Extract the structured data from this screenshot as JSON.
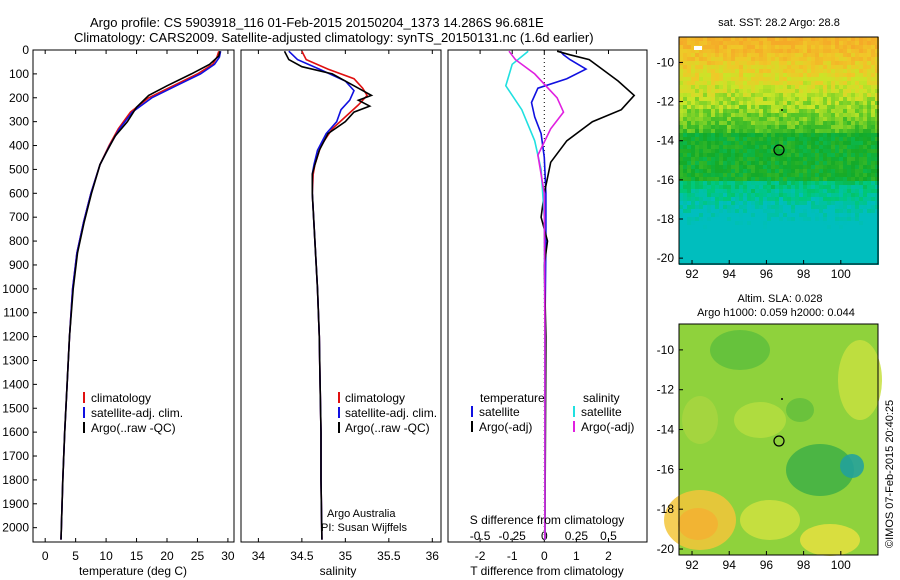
{
  "header": {
    "line1": "Argo profile: CS 5903918_116 01-Feb-2015 20150204_1373 14.286S 96.681E",
    "line2": "Climatology: CARS2009. Satellite-adjusted climatology: synTS_20150131.nc (1.6d earlier)"
  },
  "colors": {
    "climatology": "#e01010",
    "satellite": "#1010e0",
    "argo": "#000000",
    "sat_salinity": "#20e0e0",
    "argo_salinity": "#e020e0"
  },
  "chart_data": [
    {
      "type": "line",
      "name": "temperature-profile",
      "xlabel": "temperature (deg C)",
      "xlim": [
        -2,
        31
      ],
      "xticks": [
        0,
        5,
        10,
        15,
        20,
        25,
        30
      ],
      "ylim": [
        2060,
        0
      ],
      "yticks": [
        0,
        100,
        200,
        300,
        400,
        500,
        600,
        700,
        800,
        900,
        1000,
        1100,
        1200,
        1300,
        1400,
        1500,
        1600,
        1700,
        1800,
        1900,
        2000
      ],
      "legend": [
        "climatology",
        "satellite-adj. clim.",
        "Argo(..raw -QC)"
      ],
      "series": [
        {
          "name": "climatology",
          "color": "#e01010",
          "points": [
            [
              28.5,
              5
            ],
            [
              28.2,
              30
            ],
            [
              27.5,
              60
            ],
            [
              25,
              100
            ],
            [
              21,
              150
            ],
            [
              17,
              200
            ],
            [
              14,
              260
            ],
            [
              12,
              330
            ],
            [
              10.5,
              400
            ],
            [
              9,
              480
            ],
            [
              7.5,
              600
            ],
            [
              6.3,
              720
            ],
            [
              5.2,
              850
            ],
            [
              4.5,
              1000
            ],
            [
              4,
              1200
            ],
            [
              3.6,
              1400
            ],
            [
              3.2,
              1600
            ],
            [
              2.9,
              1800
            ],
            [
              2.6,
              2050
            ]
          ]
        },
        {
          "name": "satellite-adj. clim.",
          "color": "#1010e0",
          "points": [
            [
              28.8,
              5
            ],
            [
              28.6,
              30
            ],
            [
              27.8,
              60
            ],
            [
              25.5,
              100
            ],
            [
              21.5,
              150
            ],
            [
              17.5,
              200
            ],
            [
              14.3,
              260
            ],
            [
              12.2,
              330
            ],
            [
              10.6,
              400
            ],
            [
              9,
              480
            ],
            [
              7.5,
              600
            ],
            [
              6.3,
              720
            ],
            [
              5.2,
              850
            ],
            [
              4.5,
              1000
            ],
            [
              4,
              1200
            ],
            [
              3.6,
              1400
            ],
            [
              3.2,
              1600
            ],
            [
              2.9,
              1800
            ],
            [
              2.6,
              2050
            ]
          ]
        },
        {
          "name": "Argo(..raw -QC)",
          "color": "#000000",
          "points": [
            [
              28.7,
              5
            ],
            [
              28.5,
              25
            ],
            [
              27,
              60
            ],
            [
              24,
              100
            ],
            [
              20,
              150
            ],
            [
              17,
              190
            ],
            [
              15,
              240
            ],
            [
              13.5,
              300
            ],
            [
              11.5,
              360
            ],
            [
              10,
              430
            ],
            [
              9,
              480
            ],
            [
              7.6,
              600
            ],
            [
              6.4,
              720
            ],
            [
              5.3,
              850
            ],
            [
              4.6,
              1000
            ],
            [
              4,
              1200
            ],
            [
              3.6,
              1400
            ],
            [
              3.2,
              1600
            ],
            [
              2.9,
              1800
            ],
            [
              2.6,
              2050
            ]
          ]
        }
      ]
    },
    {
      "type": "line",
      "name": "salinity-profile",
      "xlabel": "salinity",
      "xlim": [
        33.8,
        36.1
      ],
      "xticks": [
        34,
        34.5,
        35,
        35.5,
        36
      ],
      "ylim": [
        2060,
        0
      ],
      "legend": [
        "climatology",
        "satellite-adj. clim.",
        "Argo(..raw -QC)"
      ],
      "annotation": [
        "Argo Australia",
        "PI: Susan Wijffels"
      ],
      "series": [
        {
          "name": "climatology",
          "color": "#e01010",
          "points": [
            [
              34.5,
              5
            ],
            [
              34.55,
              40
            ],
            [
              34.8,
              80
            ],
            [
              35.1,
              120
            ],
            [
              35.2,
              160
            ],
            [
              35.25,
              190
            ],
            [
              35.15,
              230
            ],
            [
              35.0,
              280
            ],
            [
              34.85,
              330
            ],
            [
              34.72,
              400
            ],
            [
              34.65,
              480
            ],
            [
              34.63,
              520
            ],
            [
              34.62,
              600
            ],
            [
              34.65,
              800
            ],
            [
              34.68,
              1000
            ],
            [
              34.7,
              1200
            ],
            [
              34.71,
              1400
            ],
            [
              34.72,
              1600
            ],
            [
              34.72,
              1800
            ],
            [
              34.73,
              2050
            ]
          ]
        },
        {
          "name": "satellite-adj. clim.",
          "color": "#1010e0",
          "points": [
            [
              34.35,
              5
            ],
            [
              34.45,
              40
            ],
            [
              34.7,
              80
            ],
            [
              35,
              130
            ],
            [
              35.1,
              170
            ],
            [
              35.05,
              210
            ],
            [
              34.95,
              250
            ],
            [
              34.9,
              300
            ],
            [
              34.78,
              350
            ],
            [
              34.68,
              420
            ],
            [
              34.64,
              480
            ],
            [
              34.62,
              520
            ],
            [
              34.62,
              600
            ],
            [
              34.65,
              800
            ],
            [
              34.68,
              1000
            ],
            [
              34.7,
              1200
            ],
            [
              34.71,
              1400
            ],
            [
              34.72,
              1600
            ],
            [
              34.72,
              1800
            ],
            [
              34.73,
              2050
            ]
          ]
        },
        {
          "name": "Argo(..raw -QC)",
          "color": "#000000",
          "points": [
            [
              34.3,
              5
            ],
            [
              34.35,
              40
            ],
            [
              34.5,
              70
            ],
            [
              34.85,
              100
            ],
            [
              35.05,
              140
            ],
            [
              35.2,
              170
            ],
            [
              35.3,
              190
            ],
            [
              35.15,
              210
            ],
            [
              35.28,
              235
            ],
            [
              35.1,
              260
            ],
            [
              35.0,
              300
            ],
            [
              34.8,
              350
            ],
            [
              34.7,
              420
            ],
            [
              34.65,
              480
            ],
            [
              34.62,
              520
            ],
            [
              34.62,
              600
            ],
            [
              34.65,
              800
            ],
            [
              34.68,
              1000
            ],
            [
              34.7,
              1200
            ],
            [
              34.71,
              1400
            ],
            [
              34.72,
              1600
            ],
            [
              34.72,
              1800
            ],
            [
              34.73,
              2050
            ]
          ]
        }
      ]
    },
    {
      "type": "line",
      "name": "difference-profile",
      "xlabel": "T difference from climatology",
      "xlabel2": "S difference from climatology",
      "xlim": [
        -3,
        3.2
      ],
      "xticks": [
        -2,
        -1,
        0,
        1,
        2
      ],
      "xticks_s": [
        "-0.5",
        "-0.25",
        "0",
        "0.25",
        "0.5"
      ],
      "ylim": [
        2060,
        0
      ],
      "legend_temperature": {
        "heading": "temperature",
        "items": [
          "satellite",
          "Argo(-adj)"
        ]
      },
      "legend_salinity": {
        "heading": "salinity",
        "items": [
          "satellite",
          "Argo(-adj)"
        ]
      },
      "series": [
        {
          "name": "temperature satellite",
          "color": "#1010e0",
          "points": [
            [
              0.5,
              5
            ],
            [
              0.6,
              20
            ],
            [
              0.8,
              40
            ],
            [
              1.3,
              80
            ],
            [
              0.7,
              120
            ],
            [
              -0.2,
              160
            ],
            [
              -0.4,
              220
            ],
            [
              -0.3,
              280
            ],
            [
              -0.1,
              350
            ],
            [
              0,
              450
            ],
            [
              0.05,
              600
            ],
            [
              0.05,
              800
            ],
            [
              0.02,
              1200
            ],
            [
              0.02,
              2050
            ]
          ]
        },
        {
          "name": "temperature Argo(-adj)",
          "color": "#000000",
          "points": [
            [
              0.4,
              5
            ],
            [
              0.8,
              20
            ],
            [
              1.4,
              40
            ],
            [
              1.8,
              80
            ],
            [
              2.3,
              130
            ],
            [
              2.8,
              190
            ],
            [
              2.4,
              250
            ],
            [
              1.5,
              300
            ],
            [
              0.7,
              380
            ],
            [
              0.2,
              470
            ],
            [
              0,
              600
            ],
            [
              -0.1,
              700
            ],
            [
              0.1,
              800
            ],
            [
              0,
              900
            ],
            [
              0.05,
              1200
            ],
            [
              0.02,
              2050
            ]
          ]
        },
        {
          "name": "salinity satellite",
          "color": "#20e0e0",
          "points": [
            [
              -0.5,
              5
            ],
            [
              -1,
              60
            ],
            [
              -1.2,
              150
            ],
            [
              -0.7,
              250
            ],
            [
              -0.3,
              380
            ],
            [
              -0.1,
              500
            ],
            [
              0,
              700
            ],
            [
              0.02,
              1200
            ],
            [
              0.02,
              2050
            ]
          ]
        },
        {
          "name": "salinity Argo(-adj)",
          "color": "#e020e0",
          "points": [
            [
              -1.1,
              5
            ],
            [
              -0.9,
              40
            ],
            [
              -0.3,
              100
            ],
            [
              0.4,
              200
            ],
            [
              0.6,
              260
            ],
            [
              0.2,
              330
            ],
            [
              -0.2,
              440
            ],
            [
              -0.1,
              520
            ],
            [
              0,
              600
            ],
            [
              0.02,
              1200
            ],
            [
              0.02,
              2050
            ]
          ]
        }
      ]
    },
    {
      "type": "heatmap",
      "name": "satellite-sst-map",
      "title": "sat. SST: 28.2  Argo: 28.8",
      "xlim": [
        91.3,
        102
      ],
      "xticks": [
        92,
        94,
        96,
        98,
        100
      ],
      "ylim": [
        -20.3,
        -8.7
      ],
      "yticks": [
        -10,
        -12,
        -14,
        -16,
        -18,
        -20
      ],
      "argo_position": [
        96.681,
        -14.286
      ]
    },
    {
      "type": "heatmap",
      "name": "altimetry-sla-map",
      "title": "Altim. SLA: 0.028",
      "subtitle": "Argo h1000: 0.059 h2000: 0.044",
      "xlim": [
        91.3,
        102
      ],
      "xticks": [
        92,
        94,
        96,
        98,
        100
      ],
      "ylim": [
        -20.3,
        -8.7
      ],
      "yticks": [
        -10,
        -12,
        -14,
        -16,
        -18,
        -20
      ],
      "argo_position": [
        96.681,
        -14.286
      ]
    }
  ],
  "credit": "©IMOS 07-Feb-2015 20:40:25"
}
